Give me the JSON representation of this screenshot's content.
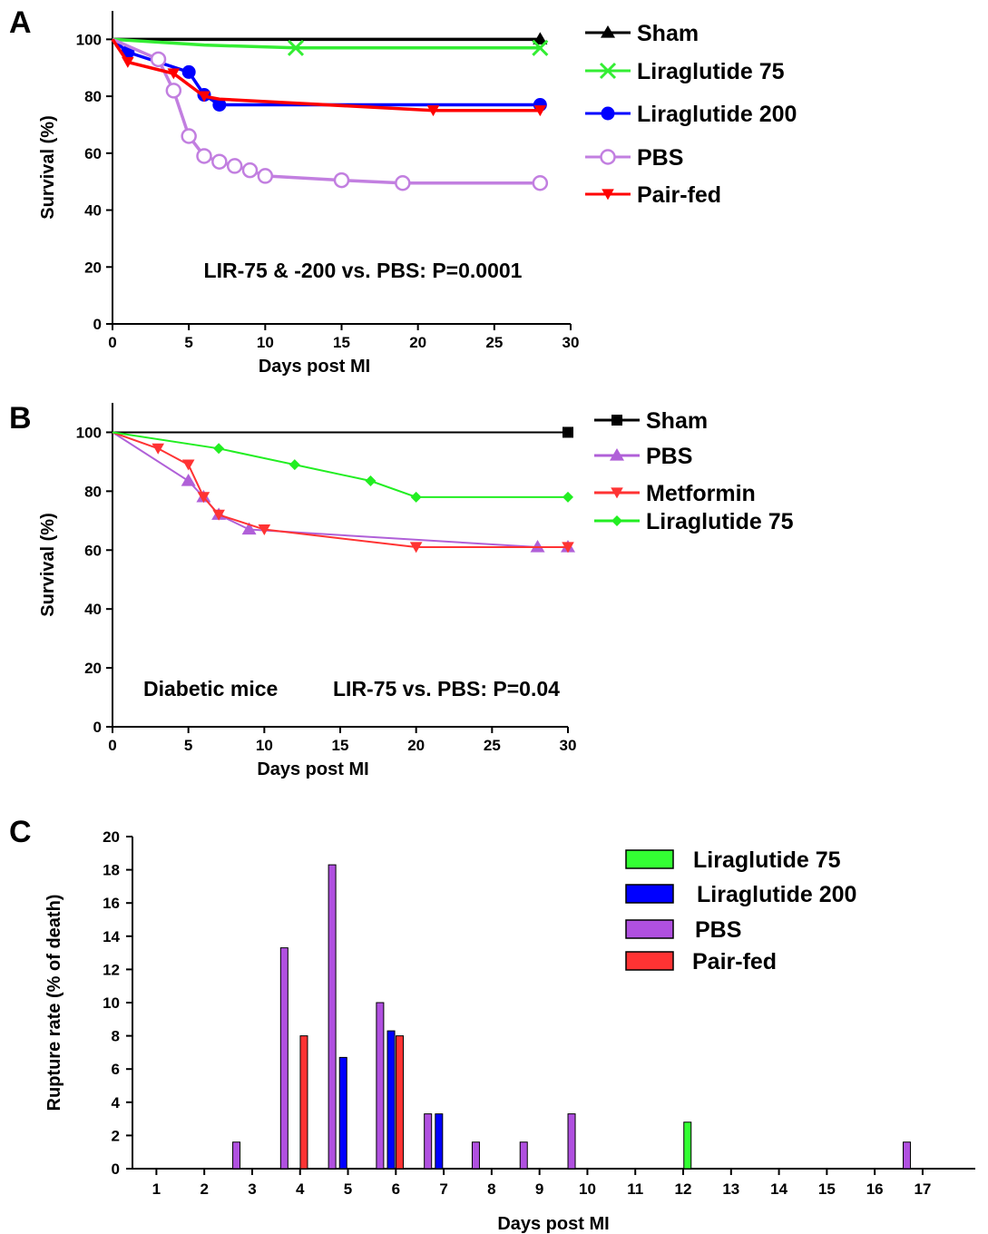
{
  "chart_data": [
    {
      "panel": "A",
      "type": "line",
      "xlabel": "Days post MI",
      "ylabel": "Survival (%)",
      "xlim": [
        0,
        30
      ],
      "ylim": [
        0,
        110
      ],
      "xticks": [
        0,
        5,
        10,
        15,
        20,
        25,
        30
      ],
      "yticks": [
        0,
        20,
        40,
        60,
        80,
        100
      ],
      "annotation": "LIR-75 & -200 vs. PBS: P=0.0001",
      "series": [
        {
          "name": "Sham",
          "color": "#000000",
          "marker": "triangle-up",
          "x": [
            0,
            28
          ],
          "y": [
            100,
            100
          ],
          "marker_x": [
            28
          ],
          "marker_y": [
            100
          ]
        },
        {
          "name": "Liraglutide 75",
          "color": "#33ee33",
          "marker": "x",
          "x": [
            0,
            6,
            12,
            28
          ],
          "y": [
            100,
            98,
            97,
            97
          ],
          "marker_x": [
            12,
            28
          ],
          "marker_y": [
            97,
            97
          ]
        },
        {
          "name": "Liraglutide 200",
          "color": "#0000ff",
          "marker": "circle",
          "x": [
            0,
            1,
            5,
            6,
            7,
            28
          ],
          "y": [
            100,
            95.5,
            88.5,
            80.5,
            77,
            77
          ],
          "marker_x": [
            1,
            5,
            6,
            7,
            28
          ],
          "marker_y": [
            95.5,
            88.5,
            80.5,
            77,
            77
          ]
        },
        {
          "name": "PBS",
          "color": "#c27fe0",
          "marker": "open-circle",
          "x": [
            0,
            3,
            4,
            5,
            6,
            7,
            8,
            9,
            10,
            15,
            19,
            28
          ],
          "y": [
            100,
            93,
            82,
            66,
            59,
            57,
            55.5,
            54,
            52,
            50.5,
            49.5,
            49.5
          ],
          "marker_x": [
            3,
            4,
            5,
            6,
            7,
            8,
            9,
            10,
            15,
            19,
            28
          ],
          "marker_y": [
            93,
            82,
            66,
            59,
            57,
            55.5,
            54,
            52,
            50.5,
            49.5,
            49.5
          ]
        },
        {
          "name": "Pair-fed",
          "color": "#ff0000",
          "marker": "triangle-down",
          "x": [
            0,
            1,
            4,
            6,
            7,
            21,
            28
          ],
          "y": [
            100,
            92,
            88,
            80,
            79,
            75,
            75
          ],
          "marker_x": [
            1,
            4,
            6,
            21,
            28
          ],
          "marker_y": [
            92,
            88,
            80,
            75,
            75
          ]
        }
      ]
    },
    {
      "panel": "B",
      "type": "line",
      "xlabel": "Days post MI",
      "ylabel": "Survival (%)",
      "xlim": [
        0,
        30
      ],
      "ylim": [
        0,
        110
      ],
      "xticks": [
        0,
        5,
        10,
        15,
        20,
        25,
        30
      ],
      "yticks": [
        0,
        20,
        40,
        60,
        80,
        100
      ],
      "annotations": [
        "Diabetic mice",
        "LIR-75 vs. PBS: P=0.04"
      ],
      "series": [
        {
          "name": "Sham",
          "color": "#000000",
          "marker": "square",
          "x": [
            0,
            30
          ],
          "y": [
            100,
            100
          ],
          "marker_x": [
            30
          ],
          "marker_y": [
            100
          ]
        },
        {
          "name": "PBS",
          "color": "#b060d8",
          "marker": "triangle-up",
          "x": [
            0,
            5,
            6,
            7,
            9,
            28,
            30
          ],
          "y": [
            100,
            83.5,
            78,
            72,
            67,
            61,
            61
          ],
          "marker_x": [
            5,
            6,
            7,
            9,
            28,
            30
          ],
          "marker_y": [
            83.5,
            78,
            72,
            67,
            61,
            61
          ]
        },
        {
          "name": "Metformin",
          "color": "#ff3333",
          "marker": "triangle-down",
          "x": [
            0,
            3,
            5,
            6,
            7,
            10,
            20,
            30
          ],
          "y": [
            100,
            94.5,
            89,
            78,
            72,
            67,
            61,
            61
          ],
          "marker_x": [
            3,
            5,
            6,
            7,
            10,
            20,
            30
          ],
          "marker_y": [
            94.5,
            89,
            78,
            72,
            67,
            61,
            61
          ]
        },
        {
          "name": "Liraglutide 75",
          "color": "#22ee22",
          "marker": "diamond",
          "x": [
            0,
            7,
            12,
            17,
            20,
            30
          ],
          "y": [
            100,
            94.5,
            89,
            83.5,
            78,
            78
          ],
          "marker_x": [
            7,
            12,
            17,
            20,
            30
          ],
          "marker_y": [
            94.5,
            89,
            83.5,
            78,
            78
          ]
        }
      ]
    },
    {
      "panel": "C",
      "type": "bar",
      "xlabel": "Days post MI",
      "ylabel": "Rupture rate (% of death)",
      "ylim": [
        0,
        20
      ],
      "yticks": [
        0,
        2,
        4,
        6,
        8,
        10,
        12,
        14,
        16,
        18,
        20
      ],
      "categories": [
        "1",
        "2",
        "3",
        "4",
        "5",
        "6",
        "7",
        "8",
        "9",
        "10",
        "11",
        "12",
        "13",
        "14",
        "15",
        "16",
        "17"
      ],
      "series": [
        {
          "name": "Liraglutide 75",
          "color": "#33ff33",
          "values": [
            0,
            0,
            0,
            0,
            0,
            0,
            0,
            0,
            0,
            0,
            0,
            2.8,
            0,
            0,
            0,
            0,
            0
          ]
        },
        {
          "name": "Liraglutide 200",
          "color": "#0000ff",
          "values": [
            0,
            0,
            0,
            0,
            6.7,
            8.3,
            3.3,
            0,
            0,
            0,
            0,
            0,
            0,
            0,
            0,
            0,
            0
          ]
        },
        {
          "name": "PBS",
          "color": "#b050e0",
          "values": [
            0,
            0,
            1.6,
            13.3,
            18.3,
            10,
            3.3,
            1.6,
            1.6,
            3.3,
            0,
            0,
            0,
            0,
            0,
            0,
            1.6
          ]
        },
        {
          "name": "Pair-fed",
          "color": "#ff3333",
          "values": [
            0,
            0,
            0,
            8,
            0,
            8,
            0,
            0,
            0,
            0,
            0,
            0,
            0,
            0,
            0,
            0,
            0
          ]
        }
      ]
    }
  ]
}
